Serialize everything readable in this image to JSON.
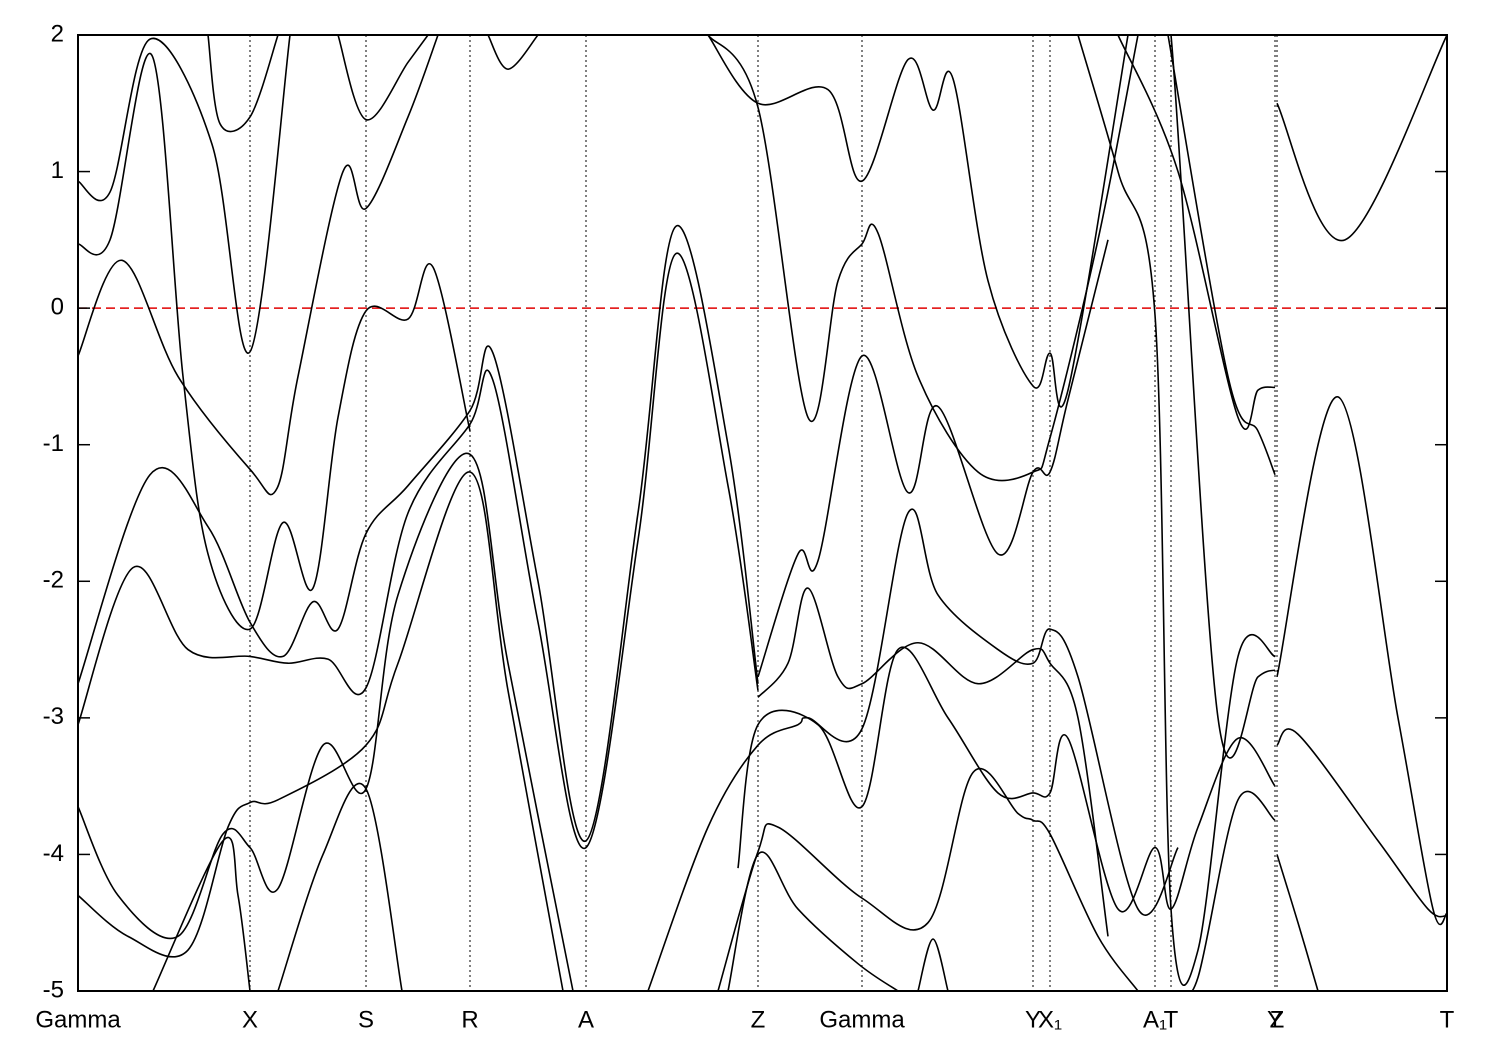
{
  "chart_data": {
    "type": "line",
    "xlim": [
      0,
      13.69
    ],
    "ylim": [
      -5,
      2
    ],
    "yticks": [
      2,
      1,
      0,
      -1,
      -2,
      -3,
      -4,
      -5
    ],
    "xticks": [
      {
        "value": 0,
        "label": "Gamma"
      },
      {
        "value": 1.72,
        "label": "X"
      },
      {
        "value": 2.88,
        "label": "S"
      },
      {
        "value": 3.92,
        "label": "R"
      },
      {
        "value": 5.08,
        "label": "A"
      },
      {
        "value": 6.8,
        "label": "Z"
      },
      {
        "value": 7.84,
        "label": "Gamma"
      },
      {
        "value": 9.55,
        "label": "Y"
      },
      {
        "value": 9.72,
        "label": "X₁"
      },
      {
        "value": 10.77,
        "label": "A₁"
      },
      {
        "value": 10.93,
        "label": "T"
      },
      {
        "value": 11.97,
        "label": "Y"
      },
      {
        "value": 11.99,
        "label": "Z"
      },
      {
        "value": 13.69,
        "label": "T"
      }
    ],
    "fermi_level": 0,
    "fermi_color": "#e00000",
    "line_color": "#000000",
    "series": [
      {
        "x": [
          0,
          0.32,
          0.72,
          1.34,
          1.72,
          2.12
        ],
        "values": [
          0.93,
          0.85,
          1.97,
          1.2,
          -0.32,
          2.0
        ]
      },
      {
        "x": [
          0,
          0.32,
          0.74,
          1.05,
          1.3,
          1.72,
          2.05,
          2.35,
          2.6,
          2.88,
          3.3,
          3.55,
          3.92
        ],
        "values": [
          0.47,
          0.5,
          1.85,
          -0.5,
          -1.8,
          -2.35,
          -1.57,
          -2.05,
          -0.8,
          -0.02,
          -0.08,
          0.3,
          -0.9
        ]
      },
      {
        "x": [
          0,
          0.44,
          1.0,
          1.72,
          1.99,
          2.2,
          2.65,
          2.88,
          3.3,
          3.6
        ],
        "values": [
          -0.35,
          0.35,
          -0.5,
          -1.18,
          -1.32,
          -0.5,
          1.0,
          0.73,
          1.4,
          2.0
        ]
      },
      {
        "x": [
          0,
          0.72,
          1.3,
          1.72,
          2.05,
          2.35,
          2.6,
          2.88,
          3.3,
          3.92,
          4.15,
          4.6,
          5.08,
          5.6,
          5.98,
          6.5,
          6.8
        ],
        "values": [
          -2.75,
          -1.22,
          -1.6,
          -2.3,
          -2.55,
          -2.15,
          -2.35,
          -1.65,
          -1.3,
          -0.75,
          -0.33,
          -2.0,
          -3.9,
          -1.5,
          0.6,
          -1.0,
          -2.75
        ]
      },
      {
        "x": [
          0,
          0.55,
          1.1,
          1.72,
          2.1,
          2.5,
          2.88,
          3.3,
          3.92,
          4.15,
          4.6,
          5.08,
          5.6,
          5.98,
          6.5,
          6.8
        ],
        "values": [
          -3.05,
          -1.9,
          -2.5,
          -2.55,
          -2.6,
          -2.57,
          -2.78,
          -1.5,
          -0.85,
          -0.53,
          -2.3,
          -3.95,
          -1.7,
          0.4,
          -1.3,
          -2.8
        ]
      },
      {
        "x": [
          0,
          0.4,
          1.0,
          1.45,
          1.72,
          2.0,
          2.45,
          2.88,
          3.2,
          3.92,
          4.3,
          4.95
        ],
        "values": [
          -3.65,
          -4.3,
          -4.6,
          -3.85,
          -3.95,
          -4.25,
          -3.2,
          -3.52,
          -2.1,
          -1.07,
          -2.6,
          -5.0
        ]
      },
      {
        "x": [
          0,
          0.5,
          1.1,
          1.5,
          1.72,
          2.0,
          2.88,
          3.2,
          3.92,
          4.3,
          4.85
        ],
        "values": [
          -4.3,
          -4.6,
          -4.7,
          -3.8,
          -3.62,
          -3.6,
          -3.2,
          -2.6,
          -1.2,
          -2.8,
          -5.0
        ]
      },
      {
        "x": [
          0.75,
          1.45,
          1.6,
          1.72
        ],
        "values": [
          -5.0,
          -3.9,
          -4.3,
          -5.0
        ]
      },
      {
        "x": [
          2.0,
          2.45,
          2.88,
          3.24
        ],
        "values": [
          -5.0,
          -4.0,
          -3.52,
          -5.0
        ]
      },
      {
        "x": [
          1.3,
          1.42,
          1.72,
          2.0
        ],
        "values": [
          2.0,
          1.35,
          1.4,
          2.0
        ]
      },
      {
        "x": [
          2.6,
          2.88,
          3.3,
          3.5
        ],
        "values": [
          2.0,
          1.38,
          1.8,
          2.0
        ]
      },
      {
        "x": [
          4.1,
          4.3,
          4.6
        ],
        "values": [
          2.0,
          1.75,
          2.0
        ]
      },
      {
        "x": [
          6.3,
          6.8,
          7.5,
          7.84,
          8.3,
          8.55,
          8.75,
          9.1,
          9.55,
          9.72,
          9.9,
          10.5
        ],
        "values": [
          2.0,
          1.5,
          1.6,
          0.93,
          1.82,
          1.45,
          1.68,
          0.2,
          -0.57,
          -0.33,
          -0.6,
          2.0
        ]
      },
      {
        "x": [
          6.3,
          6.8,
          7.3,
          7.6,
          7.84,
          8.0,
          8.4,
          9.0,
          9.55,
          9.72,
          10.2,
          10.6
        ],
        "values": [
          2.0,
          1.47,
          -0.8,
          0.2,
          0.47,
          0.55,
          -0.5,
          -1.2,
          -1.2,
          -0.95,
          0.5,
          2.0
        ]
      },
      {
        "x": [
          5.7,
          6.3,
          6.8,
          7.2,
          7.3,
          7.84,
          8.3,
          8.6,
          9.2,
          9.55,
          9.72,
          10.0,
          10.6,
          11.0
        ],
        "values": [
          -5.0,
          -3.8,
          -3.2,
          -3.05,
          -3.0,
          -3.08,
          -1.5,
          -2.1,
          -2.5,
          -2.6,
          -2.35,
          -2.7,
          -4.4,
          -3.95
        ]
      },
      {
        "x": [
          6.8,
          7.2,
          7.4,
          7.84,
          8.3,
          8.6,
          9.2,
          9.55,
          9.72,
          9.9,
          10.3
        ],
        "values": [
          -2.7,
          -1.8,
          -1.85,
          -0.35,
          -1.35,
          -0.72,
          -1.8,
          -1.2,
          -1.2,
          -0.67,
          0.5
        ]
      },
      {
        "x": [
          6.8,
          7.1,
          7.3,
          7.6,
          7.84,
          8.4,
          9.0,
          9.55,
          9.72,
          10.0,
          10.3
        ],
        "values": [
          -2.85,
          -2.6,
          -2.05,
          -2.7,
          -2.75,
          -2.45,
          -2.75,
          -2.5,
          -2.6,
          -3.0,
          -4.6
        ]
      },
      {
        "x": [
          6.6,
          6.8,
          7.4,
          7.84,
          8.2,
          8.7,
          9.2,
          9.55,
          9.72,
          9.9,
          10.4,
          10.77,
          10.93,
          11.2,
          11.6,
          11.97
        ],
        "values": [
          -4.1,
          -3.05,
          -3.05,
          -3.65,
          -2.5,
          -3.0,
          -3.55,
          -3.55,
          -3.55,
          -3.15,
          -4.4,
          -3.95,
          -4.4,
          -3.8,
          -3.15,
          -3.5
        ]
      },
      {
        "x": [
          6.4,
          6.8,
          7.0,
          7.84,
          8.5,
          8.95,
          9.4,
          9.55,
          9.72,
          10.2,
          10.6
        ],
        "values": [
          -5.0,
          -3.98,
          -3.8,
          -4.32,
          -4.5,
          -3.4,
          -3.7,
          -3.75,
          -3.85,
          -4.6,
          -5.0
        ]
      },
      {
        "x": [
          6.5,
          6.8,
          7.2,
          7.8,
          8.2
        ],
        "values": [
          -5.0,
          -4.0,
          -4.4,
          -4.8,
          -5.0
        ]
      },
      {
        "x": [
          8.4,
          8.55,
          8.7
        ],
        "values": [
          -5.0,
          -4.62,
          -5.0
        ]
      },
      {
        "x": [
          10.0,
          10.4,
          10.77,
          10.93,
          11.2,
          11.6,
          11.97
        ],
        "values": [
          2.0,
          1.0,
          -0.05,
          -4.4,
          -4.7,
          -2.55,
          -2.55
        ]
      },
      {
        "x": [
          10.4,
          11.0,
          11.6,
          11.8,
          11.97
        ],
        "values": [
          2.0,
          1.0,
          -0.8,
          -0.6,
          -0.58
        ]
      },
      {
        "x": [
          10.9,
          11.5,
          11.8,
          11.97
        ],
        "values": [
          2.0,
          -0.5,
          -0.9,
          -1.22
        ]
      },
      {
        "x": [
          10.5,
          10.77,
          10.93,
          11.4,
          11.8,
          11.97
        ],
        "values": [
          2.0,
          2.0,
          2.0,
          -3.0,
          -2.7,
          -2.65
        ]
      },
      {
        "x": [
          11.0,
          11.2,
          11.6,
          11.97
        ],
        "values": [
          -5.0,
          -4.9,
          -3.6,
          -3.75
        ]
      },
      {
        "x": [
          11.99,
          12.67,
          13.69
        ],
        "values": [
          1.5,
          0.5,
          2.0
        ]
      },
      {
        "x": [
          11.99,
          12.6,
          13.2,
          13.55,
          13.69
        ],
        "values": [
          -2.7,
          -0.65,
          -3.0,
          -4.4,
          -4.43
        ]
      },
      {
        "x": [
          11.99,
          12.2,
          13.0,
          13.5,
          13.69
        ],
        "values": [
          -3.2,
          -3.12,
          -3.9,
          -4.4,
          -4.45
        ]
      },
      {
        "x": [
          11.99,
          12.2,
          12.4
        ],
        "values": [
          -4.0,
          -4.5,
          -5.0
        ]
      }
    ]
  }
}
